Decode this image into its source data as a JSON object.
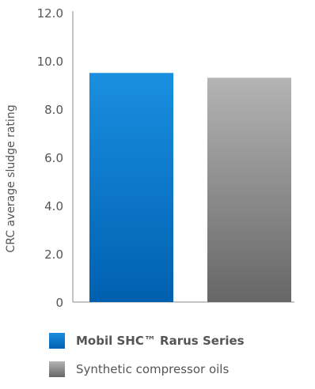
{
  "chart_data": {
    "type": "bar",
    "categories": [
      "Mobil SHC™ Rarus Series",
      "Synthetic compressor oils"
    ],
    "values": [
      9.5,
      9.3
    ],
    "ylabel": "CRC average sludge rating",
    "ylim": [
      0,
      12
    ],
    "yticks": [
      "0",
      "2.0",
      "4.0",
      "6.0",
      "8.0",
      "10.0",
      "12.0"
    ],
    "grid": false,
    "legend_position": "bottom",
    "colors": {
      "series_1_top": "#1a8fe0",
      "series_1_bottom": "#0060b0",
      "series_2_top": "#b4b4b4",
      "series_2_bottom": "#666666",
      "axis": "#888888",
      "text": "#555555"
    }
  },
  "legend": {
    "items": [
      {
        "label": "Mobil SHC™ Rarus Series",
        "bold": true
      },
      {
        "label": "Synthetic compressor oils",
        "bold": false
      }
    ]
  }
}
